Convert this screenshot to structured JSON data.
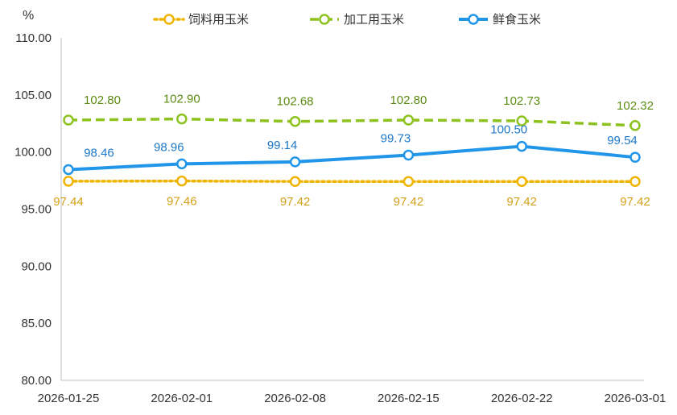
{
  "chart_data": {
    "type": "line",
    "unit": "%",
    "x": [
      "2026-01-25",
      "2026-02-01",
      "2026-02-08",
      "2026-02-15",
      "2026-02-22",
      "2026-03-01"
    ],
    "ylim": [
      80,
      110
    ],
    "y_ticks": [
      "80.00",
      "85.00",
      "90.00",
      "95.00",
      "100.00",
      "105.00",
      "110.00"
    ],
    "grid": false,
    "legend": "top-center",
    "series": [
      {
        "name": "饲料用玉米",
        "color": "#F0B400",
        "style": "dotted",
        "values": [
          97.44,
          97.46,
          97.42,
          97.42,
          97.42,
          97.42
        ],
        "labels": [
          "97.44",
          "97.46",
          "97.42",
          "97.42",
          "97.42",
          "97.42"
        ]
      },
      {
        "name": "加工用玉米",
        "color": "#8DC21F",
        "style": "dashed",
        "values": [
          102.8,
          102.9,
          102.68,
          102.8,
          102.73,
          102.32
        ],
        "labels": [
          "102.80",
          "102.90",
          "102.68",
          "102.80",
          "102.73",
          "102.32"
        ]
      },
      {
        "name": "鲜食玉米",
        "color": "#2196E8",
        "style": "solid",
        "values": [
          98.46,
          98.96,
          99.14,
          99.73,
          100.5,
          99.54
        ],
        "labels": [
          "98.46",
          "98.96",
          "99.14",
          "99.73",
          "100.50",
          "99.54"
        ]
      }
    ]
  }
}
